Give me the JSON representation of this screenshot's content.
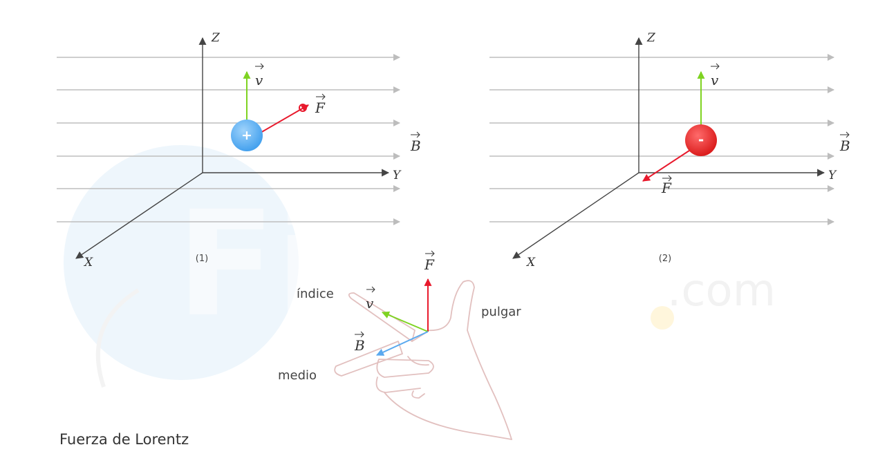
{
  "watermark": {
    "main": "Fisicalab",
    "suffix": ".com"
  },
  "colors": {
    "field": "#bdbdbd",
    "axis": "#444444",
    "velocity": "#7ed321",
    "force": "#e8192c",
    "field_vector": "#5aa9ef",
    "positive_charge": "#58b0f2",
    "negative_charge": "#e82424",
    "hand_outline": "#e2c0bf"
  },
  "diagram1": {
    "number": "(1)",
    "axis_x": "X",
    "axis_y": "Y",
    "axis_z": "Z",
    "velocity_label": "v",
    "force_label": "F",
    "field_label": "B",
    "charge_sign": "+"
  },
  "diagram2": {
    "number": "(2)",
    "axis_x": "X",
    "axis_y": "Y",
    "axis_z": "Z",
    "velocity_label": "v",
    "force_label": "F",
    "field_label": "B",
    "charge_sign": "-"
  },
  "hand": {
    "force_label": "F",
    "velocity_label": "v",
    "field_label": "B",
    "index_label": "índice",
    "thumb_label": "pulgar",
    "middle_label": "medio"
  },
  "caption": "Fuerza de Lorentz"
}
